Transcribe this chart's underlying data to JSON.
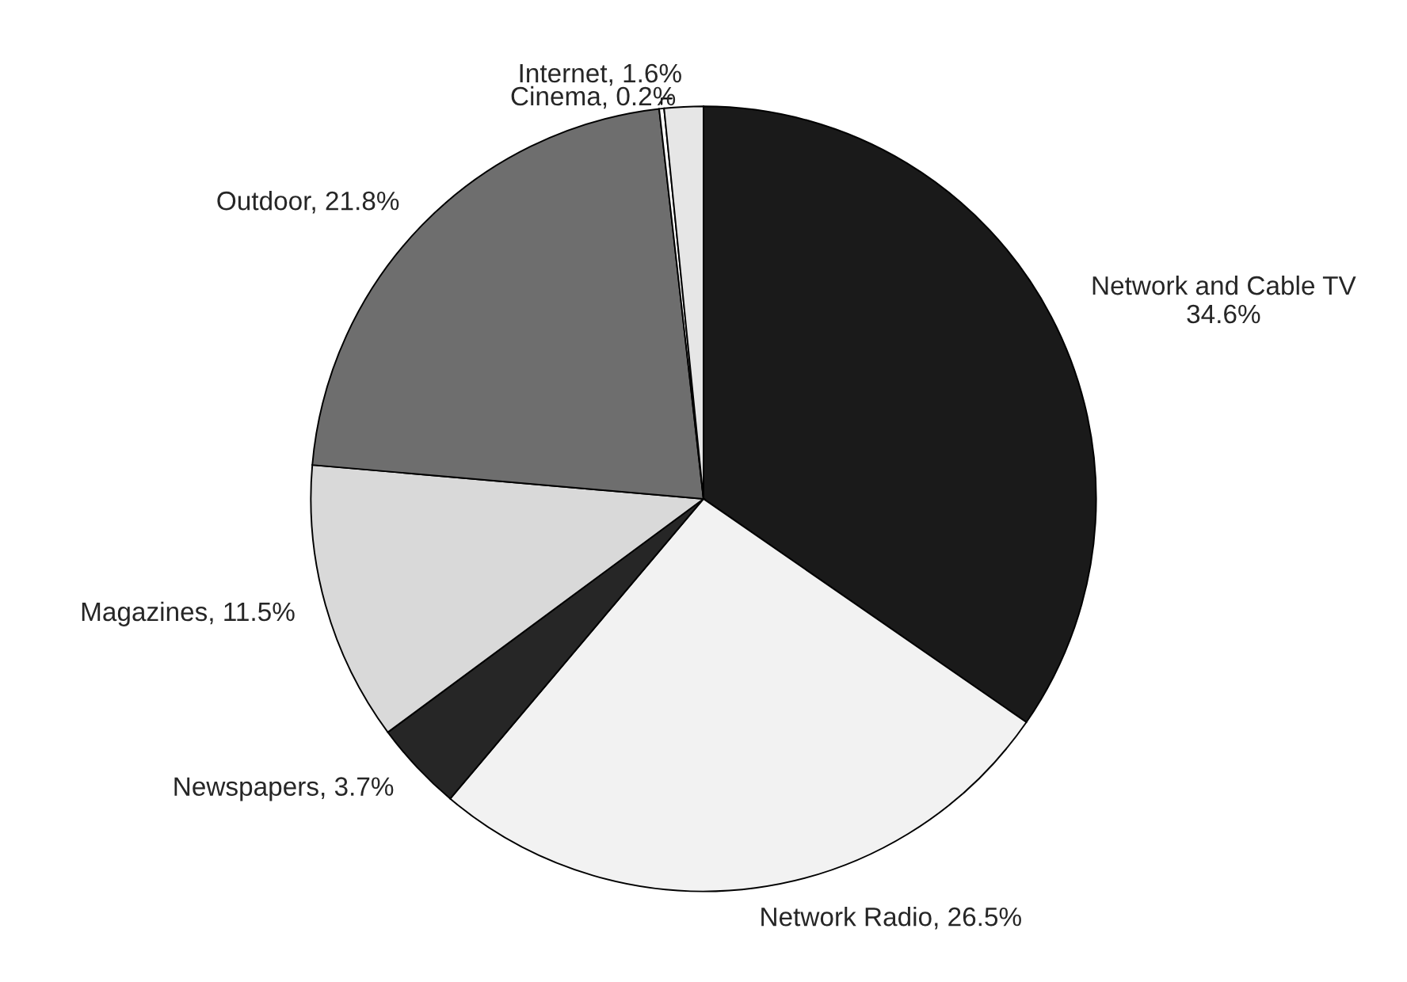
{
  "chart_data": {
    "type": "pie",
    "categories": [
      "Network and Cable TV",
      "Network Radio",
      "Newspapers",
      "Magazines",
      "Outdoor",
      "Cinema",
      "Internet"
    ],
    "values": [
      34.6,
      26.5,
      3.7,
      11.5,
      21.8,
      0.2,
      1.6
    ],
    "value_labels": [
      "34.6%",
      "26.5%",
      "3.7%",
      "11.5%",
      "21.8%",
      "0.2%",
      "1.6%"
    ],
    "colors": [
      "#1a1a1a",
      "#f2f2f2",
      "#262626",
      "#d9d9d9",
      "#6e6e6e",
      "#ffffff",
      "#e6e6e6"
    ]
  }
}
